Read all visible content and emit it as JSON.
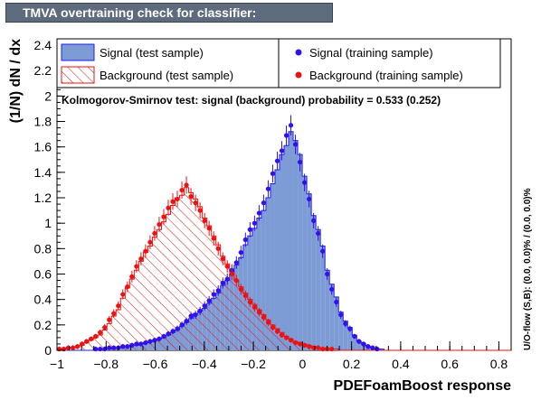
{
  "window": {
    "title": "TMVA overtraining check for classifier: PDEFoamBoost"
  },
  "chart_data": {
    "type": "bar",
    "xlabel": "PDEFoamBoost response",
    "ylabel": "(1/N) dN / dx",
    "xlim": [
      -1,
      0.85
    ],
    "ylim": [
      0,
      2.45
    ],
    "x_ticks": [
      "−1",
      "−0.8",
      "−0.6",
      "−0.4",
      "−0.2",
      "0",
      "0.2",
      "0.4",
      "0.6",
      "0.8"
    ],
    "x_tick_values": [
      -1,
      -0.8,
      -0.6,
      -0.4,
      -0.2,
      0,
      0.2,
      0.4,
      0.6,
      0.8
    ],
    "y_ticks": [
      "0",
      "0.2",
      "0.4",
      "0.6",
      "0.8",
      "1",
      "1.2",
      "1.4",
      "1.6",
      "1.8",
      "2",
      "2.2",
      "2.4"
    ],
    "y_tick_values": [
      0,
      0.2,
      0.4,
      0.6,
      0.8,
      1,
      1.2,
      1.4,
      1.6,
      1.8,
      2,
      2.2,
      2.4
    ],
    "bin_edges_start": -1.0,
    "bin_width": 0.0185,
    "ks_text": "Kolmogorov-Smirnov test: signal (background) probability = 0.533 (0.252)",
    "overflow_text": "U/O-flow (S,B): (0.0, 0.0)% / (0.0, 0.0)%",
    "legend": {
      "signal_test": "Signal (test sample)",
      "background_test": "Background (test sample)",
      "signal_train": "Signal (training sample)",
      "background_train": "Background (training sample)"
    },
    "colors": {
      "signal_fill": "#7d9bd5",
      "signal_line": "#2020ee",
      "background": "#ee1111",
      "signal_points": "#3311ee"
    },
    "series": [
      {
        "name": "Signal (test sample)",
        "values": [
          0,
          0,
          0,
          0,
          0,
          0,
          0,
          0,
          0.01,
          0.01,
          0.01,
          0.01,
          0.02,
          0.02,
          0.03,
          0.03,
          0.04,
          0.04,
          0.05,
          0.06,
          0.07,
          0.08,
          0.09,
          0.1,
          0.12,
          0.14,
          0.16,
          0.19,
          0.22,
          0.25,
          0.29,
          0.31,
          0.33,
          0.37,
          0.41,
          0.45,
          0.51,
          0.55,
          0.6,
          0.67,
          0.73,
          0.83,
          0.9,
          0.96,
          1.04,
          1.1,
          1.2,
          1.31,
          1.42,
          1.54,
          1.61,
          1.72,
          1.65,
          1.54,
          1.37,
          1.23,
          1.06,
          0.95,
          0.82,
          0.63,
          0.52,
          0.42,
          0.3,
          0.23,
          0.18,
          0.12,
          0.07,
          0.05,
          0.03,
          0.02,
          0.01,
          0.01,
          0,
          0,
          0,
          0,
          0,
          0,
          0,
          0,
          0,
          0,
          0,
          0,
          0,
          0,
          0,
          0,
          0,
          0,
          0,
          0,
          0,
          0,
          0,
          0,
          0,
          0,
          0,
          0
        ]
      },
      {
        "name": "Background (test sample)",
        "values": [
          0.01,
          0.01,
          0.02,
          0.02,
          0.03,
          0.04,
          0.06,
          0.08,
          0.1,
          0.12,
          0.16,
          0.21,
          0.27,
          0.32,
          0.41,
          0.49,
          0.56,
          0.63,
          0.7,
          0.77,
          0.82,
          0.89,
          0.95,
          1.01,
          1.07,
          1.14,
          1.2,
          1.22,
          1.28,
          1.24,
          1.19,
          1.13,
          1.04,
          0.98,
          0.9,
          0.83,
          0.74,
          0.68,
          0.61,
          0.55,
          0.5,
          0.45,
          0.4,
          0.36,
          0.32,
          0.28,
          0.24,
          0.2,
          0.17,
          0.14,
          0.11,
          0.09,
          0.07,
          0.06,
          0.05,
          0.04,
          0.03,
          0.02,
          0.02,
          0.01,
          0.01,
          0.01,
          0,
          0,
          0,
          0,
          0,
          0,
          0,
          0,
          0,
          0,
          0,
          0,
          0,
          0,
          0,
          0,
          0,
          0,
          0,
          0,
          0,
          0,
          0,
          0,
          0,
          0,
          0,
          0,
          0,
          0,
          0,
          0,
          0,
          0,
          0,
          0,
          0,
          0
        ]
      },
      {
        "name": "Signal (training sample)",
        "values": [
          0,
          0,
          0,
          0,
          0,
          0,
          0,
          0,
          0.01,
          0.01,
          0.01,
          0.02,
          0.02,
          0.02,
          0.03,
          0.03,
          0.04,
          0.05,
          0.05,
          0.06,
          0.07,
          0.08,
          0.09,
          0.11,
          0.13,
          0.15,
          0.17,
          0.2,
          0.23,
          0.27,
          0.28,
          0.31,
          0.35,
          0.39,
          0.44,
          0.47,
          0.53,
          0.56,
          0.63,
          0.69,
          0.77,
          0.87,
          0.95,
          1.0,
          1.08,
          1.16,
          1.27,
          1.39,
          1.49,
          1.57,
          1.69,
          1.77,
          1.62,
          1.48,
          1.32,
          1.19,
          1.02,
          0.92,
          0.78,
          0.6,
          0.48,
          0.38,
          0.28,
          0.21,
          0.17,
          0.11,
          0.07,
          0.05,
          0.03,
          0.02,
          0.01,
          0,
          0,
          0,
          0,
          0,
          0,
          0,
          0,
          0,
          0,
          0,
          0,
          0,
          0,
          0,
          0,
          0,
          0,
          0,
          0,
          0,
          0,
          0,
          0,
          0,
          0,
          0,
          0,
          0
        ]
      },
      {
        "name": "Background (training sample)",
        "values": [
          0.01,
          0.01,
          0.02,
          0.02,
          0.03,
          0.05,
          0.07,
          0.09,
          0.11,
          0.14,
          0.18,
          0.24,
          0.29,
          0.35,
          0.44,
          0.5,
          0.58,
          0.66,
          0.72,
          0.78,
          0.85,
          0.92,
          0.99,
          1.05,
          1.12,
          1.17,
          1.19,
          1.26,
          1.3,
          1.21,
          1.16,
          1.1,
          1.02,
          0.96,
          0.88,
          0.8,
          0.72,
          0.66,
          0.6,
          0.55,
          0.48,
          0.43,
          0.38,
          0.34,
          0.3,
          0.26,
          0.22,
          0.18,
          0.15,
          0.12,
          0.1,
          0.08,
          0.06,
          0.05,
          0.04,
          0.03,
          0.02,
          0.02,
          0.01,
          0.01,
          0.01,
          0,
          0,
          0,
          0,
          0,
          0,
          0,
          0,
          0,
          0,
          0,
          0,
          0,
          0,
          0,
          0,
          0,
          0,
          0,
          0,
          0,
          0,
          0,
          0,
          0,
          0,
          0,
          0,
          0,
          0,
          0,
          0,
          0,
          0,
          0,
          0,
          0,
          0,
          0
        ]
      }
    ]
  }
}
